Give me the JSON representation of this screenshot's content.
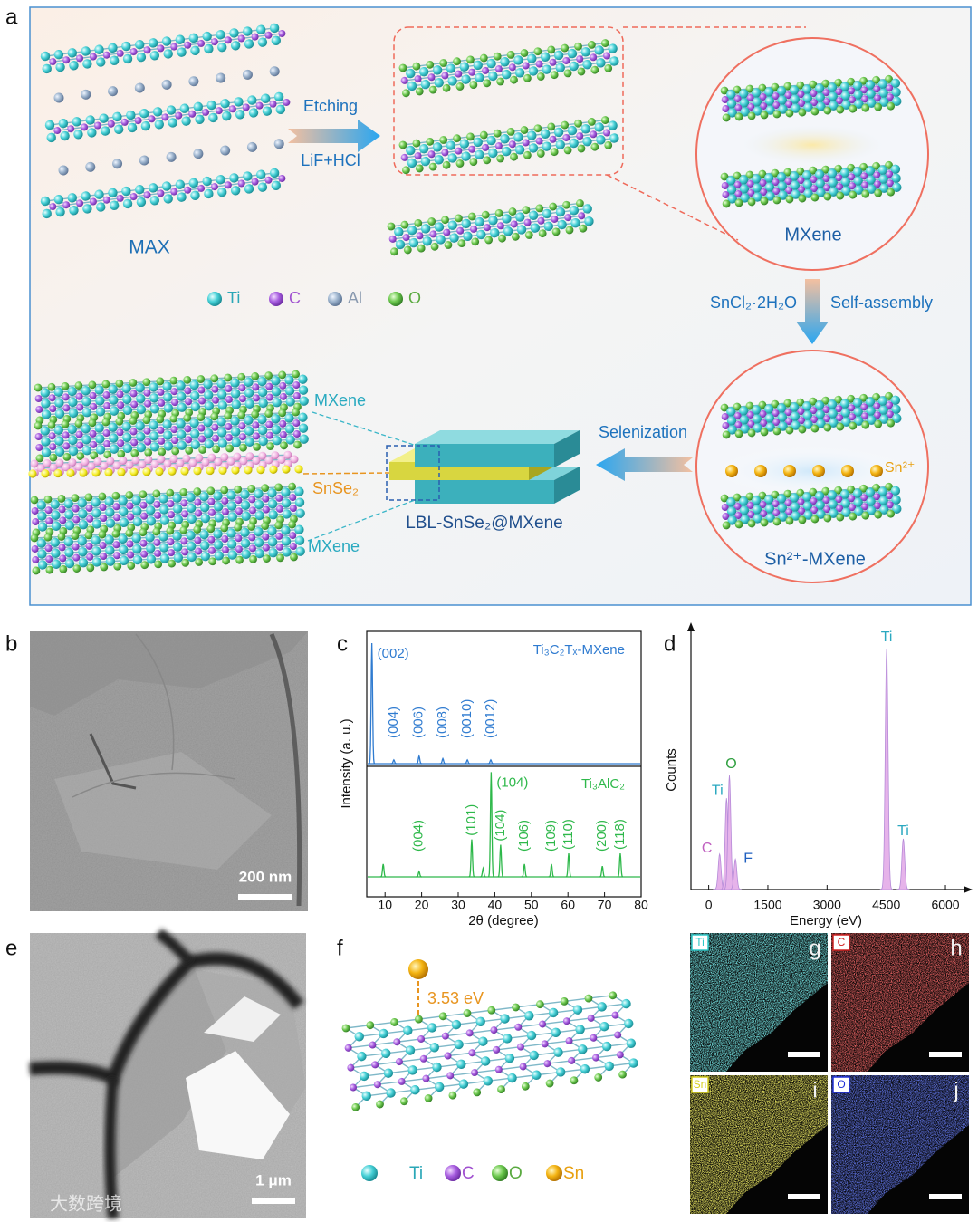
{
  "panel_a": {
    "label": "a",
    "etching": "Etching",
    "etchant": "LiF+HCl",
    "max_label": "MAX",
    "mxene_label": "MXene",
    "legend": [
      "Ti",
      "C",
      "Al",
      "O"
    ],
    "reagent": "SnCl₂·2H₂O",
    "self_assembly": "Self-assembly",
    "selenization": "Selenization",
    "sn_ion": "Sn²⁺",
    "sn_mxene_label": "Sn²⁺-MXene",
    "top_mxene": "MXene",
    "bottom_mxene": "MXene",
    "snse2": "SnSe₂",
    "lbl_label": "LBL-SnSe₂@MXene"
  },
  "panel_b": {
    "label": "b",
    "scale_bar": "200 nm"
  },
  "panel_c": {
    "label": "c",
    "y_label": "Intensity (a. u.)",
    "x_label": "2θ (degree)",
    "xlim": [
      5,
      80
    ],
    "xticks": [
      10,
      20,
      30,
      40,
      50,
      60,
      70,
      80
    ],
    "series": [
      {
        "name": "Ti₃C₂Tₓ-MXene",
        "color": "#2f7bd0",
        "peaks": [
          {
            "x": 6.4,
            "h": 0.95,
            "label": "(002)"
          },
          {
            "x": 12.4,
            "h": 0.03,
            "label": "(004)"
          },
          {
            "x": 19.3,
            "h": 0.06,
            "label": "(006)"
          },
          {
            "x": 25.8,
            "h": 0.04,
            "label": "(008)"
          },
          {
            "x": 32.5,
            "h": 0.03,
            "label": "(0010)"
          },
          {
            "x": 38.9,
            "h": 0.03,
            "label": "(0012)"
          }
        ]
      },
      {
        "name": "Ti₃AlC₂",
        "color": "#2eb84a",
        "peaks": [
          {
            "x": 9.5,
            "h": 0.12
          },
          {
            "x": 19.3,
            "h": 0.05,
            "label": "(004)"
          },
          {
            "x": 33.7,
            "h": 0.35,
            "label": "(101)"
          },
          {
            "x": 36.8,
            "h": 0.08
          },
          {
            "x": 39.0,
            "h": 0.98,
            "label": "(104)"
          },
          {
            "x": 41.6,
            "h": 0.3,
            "label": "(104)"
          },
          {
            "x": 48.1,
            "h": 0.12,
            "label": "(106)"
          },
          {
            "x": 55.5,
            "h": 0.12,
            "label": "(109)"
          },
          {
            "x": 60.2,
            "h": 0.22,
            "label": "(110)"
          },
          {
            "x": 69.4,
            "h": 0.1,
            "label": "(200)"
          },
          {
            "x": 74.3,
            "h": 0.22,
            "label": "(118)"
          }
        ]
      }
    ]
  },
  "panel_d": {
    "label": "d",
    "y_label": "Counts",
    "x_label": "Energy (eV)",
    "xlim": [
      -450,
      6550
    ],
    "xticks": [
      0,
      1500,
      3000,
      4500,
      6000
    ],
    "color": "#e6b3ea",
    "peaks": [
      {
        "x": 277,
        "h": 0.14,
        "label": "C",
        "label_color": "#c060c0"
      },
      {
        "x": 452,
        "h": 0.36,
        "label": "Ti",
        "label_color": "#2aa8c0"
      },
      {
        "x": 525,
        "h": 0.45,
        "label": "O",
        "label_color": "#30a040"
      },
      {
        "x": 677,
        "h": 0.12,
        "label": "F",
        "label_color": "#2060c0"
      },
      {
        "x": 4510,
        "h": 0.95,
        "label": "Ti",
        "label_color": "#2aa8c0"
      },
      {
        "x": 4932,
        "h": 0.2,
        "label": "Ti",
        "label_color": "#2aa8c0"
      }
    ]
  },
  "panel_e": {
    "label": "e",
    "scale_bar": "1 μm",
    "watermark": "大数跨境"
  },
  "panel_f": {
    "label": "f",
    "energy": "3.53 eV",
    "legend": [
      "Ti",
      "C",
      "O",
      "Sn"
    ]
  },
  "maps": [
    {
      "element": "Ti",
      "letter": "g",
      "color": "#2ec8c8"
    },
    {
      "element": "C",
      "letter": "h",
      "color": "#d02020"
    },
    {
      "element": "Sn",
      "letter": "i",
      "color": "#d8d020"
    },
    {
      "element": "O",
      "letter": "j",
      "color": "#2030d8"
    }
  ]
}
